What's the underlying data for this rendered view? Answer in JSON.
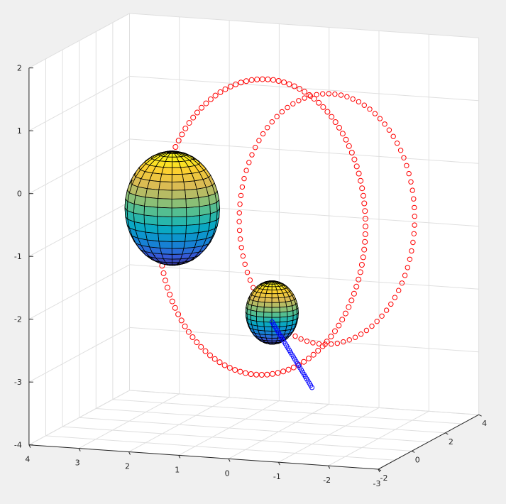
{
  "chart_data": {
    "type": "scatter3d",
    "title": "",
    "xlabel": "",
    "ylabel": "",
    "zlabel": "",
    "grid": true,
    "box": false,
    "colors": {
      "background": "#f0f0f0",
      "axes": "#ffffff",
      "grid": "#dfdfdf",
      "axis_line": "#262626",
      "orbit_big": "#ff0000",
      "orbit_small": "#ff0000",
      "trail": "#0000ff",
      "mesh": "#000000"
    },
    "xlim": [
      -3,
      4
    ],
    "ylim": [
      -2,
      4
    ],
    "zlim": [
      -4,
      2
    ],
    "x_ticks": [
      "4",
      "3",
      "2",
      "1",
      "0",
      "-1",
      "-2",
      "-3"
    ],
    "y_ticks": [
      "-2",
      "0",
      "2",
      "4"
    ],
    "z_ticks": [
      "2",
      "1",
      "0",
      "-1",
      "-2",
      "-3",
      "-4"
    ],
    "surfaces": [
      {
        "name": "large-sphere",
        "colormap": "parula",
        "center": [
          1.8,
          0.0,
          -0.4
        ],
        "radius": 0.9
      },
      {
        "name": "small-sphere",
        "colormap": "parula",
        "center": [
          -0.2,
          0.0,
          -1.95
        ],
        "radius": 0.5
      }
    ],
    "series": [
      {
        "name": "",
        "marker": "o",
        "color": "#ff0000",
        "description": "large circular orbit marker ring",
        "center": [
          0.0,
          0.0,
          -0.6
        ],
        "radius": 2.3
      },
      {
        "name": "",
        "marker": "o",
        "color": "#ff0000",
        "description": "smaller circular orbit marker ring",
        "center": [
          -1.3,
          0.0,
          -0.4
        ],
        "radius": 1.95
      },
      {
        "name": "",
        "marker": "o",
        "color": "#0000ff",
        "description": "blue trail from small sphere",
        "start": [
          -0.2,
          0.0,
          -2.1
        ],
        "end": [
          -1.0,
          0.0,
          -3.1
        ]
      }
    ]
  }
}
